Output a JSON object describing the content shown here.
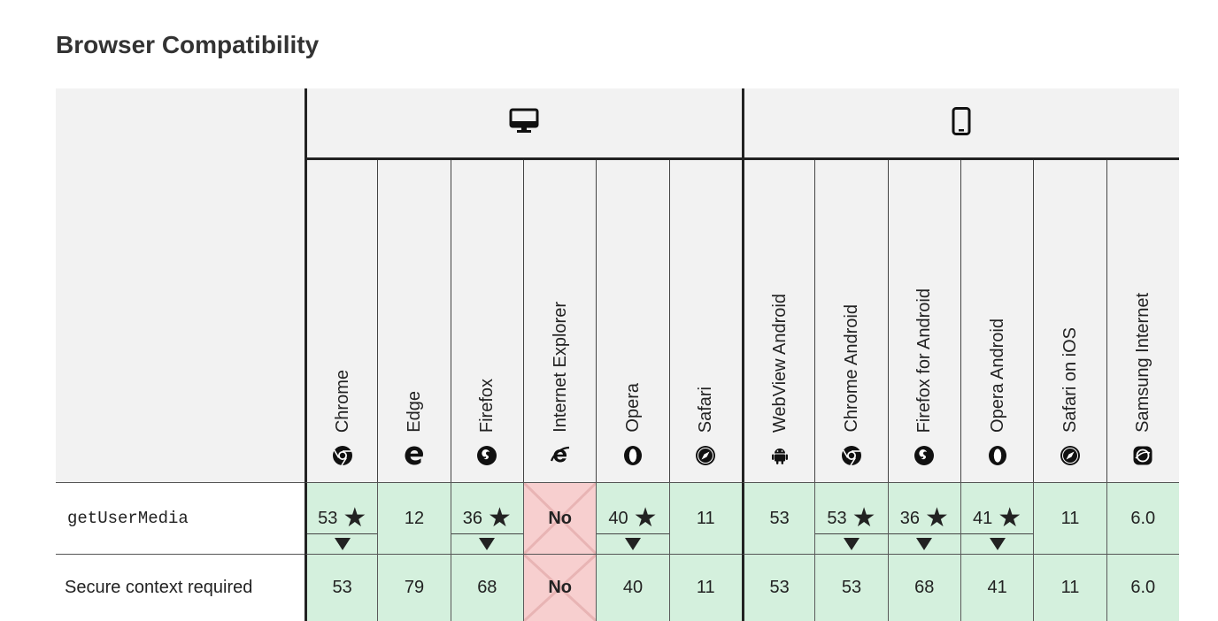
{
  "page_title": "Browser Compatibility",
  "groups": [
    {
      "name": "desktop",
      "icon": "monitor-icon"
    },
    {
      "name": "mobile",
      "icon": "phone-icon"
    }
  ],
  "browsers": [
    {
      "name": "Chrome",
      "icon": "chrome-icon"
    },
    {
      "name": "Edge",
      "icon": "edge-icon"
    },
    {
      "name": "Firefox",
      "icon": "firefox-icon"
    },
    {
      "name": "Internet Explorer",
      "icon": "ie-icon"
    },
    {
      "name": "Opera",
      "icon": "opera-icon"
    },
    {
      "name": "Safari",
      "icon": "safari-icon"
    },
    {
      "name": "WebView Android",
      "icon": "android-icon"
    },
    {
      "name": "Chrome Android",
      "icon": "chrome-icon"
    },
    {
      "name": "Firefox for Android",
      "icon": "firefox-icon"
    },
    {
      "name": "Opera Android",
      "icon": "opera-icon"
    },
    {
      "name": "Safari on iOS",
      "icon": "safari-icon"
    },
    {
      "name": "Samsung Internet",
      "icon": "samsung-icon"
    }
  ],
  "features": [
    {
      "name": "getUserMedia",
      "support": [
        {
          "value": "53",
          "status": "yes",
          "note": true
        },
        {
          "value": "12",
          "status": "yes",
          "note": false
        },
        {
          "value": "36",
          "status": "yes",
          "note": true
        },
        {
          "value": "No",
          "status": "no",
          "note": false
        },
        {
          "value": "40",
          "status": "yes",
          "note": true
        },
        {
          "value": "11",
          "status": "yes",
          "note": false
        },
        {
          "value": "53",
          "status": "yes",
          "note": false
        },
        {
          "value": "53",
          "status": "yes",
          "note": true
        },
        {
          "value": "36",
          "status": "yes",
          "note": true
        },
        {
          "value": "41",
          "status": "yes",
          "note": true
        },
        {
          "value": "11",
          "status": "yes",
          "note": false
        },
        {
          "value": "6.0",
          "status": "yes",
          "note": false
        }
      ]
    },
    {
      "name": "Secure context required",
      "support": [
        {
          "value": "53",
          "status": "yes",
          "note": false
        },
        {
          "value": "79",
          "status": "yes",
          "note": false
        },
        {
          "value": "68",
          "status": "yes",
          "note": false
        },
        {
          "value": "No",
          "status": "no",
          "note": false
        },
        {
          "value": "40",
          "status": "yes",
          "note": false
        },
        {
          "value": "11",
          "status": "yes",
          "note": false
        },
        {
          "value": "53",
          "status": "yes",
          "note": false
        },
        {
          "value": "53",
          "status": "yes",
          "note": false
        },
        {
          "value": "68",
          "status": "yes",
          "note": false
        },
        {
          "value": "41",
          "status": "yes",
          "note": false
        },
        {
          "value": "11",
          "status": "yes",
          "note": false
        },
        {
          "value": "6.0",
          "status": "yes",
          "note": false
        }
      ]
    }
  ],
  "colors": {
    "supported": "#d4f0dd",
    "unsupported": "#f7cfcf",
    "header_bg": "#f2f2f2"
  }
}
